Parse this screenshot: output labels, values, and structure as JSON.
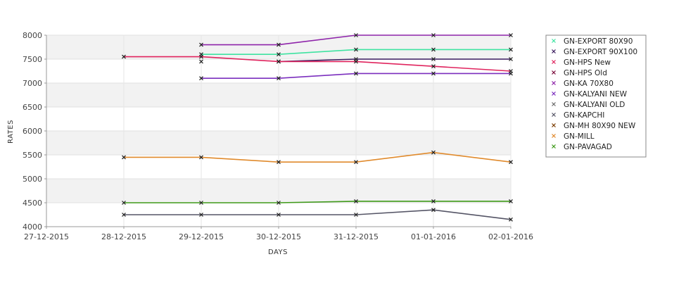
{
  "chart_data": {
    "type": "line",
    "xlabel": "DAYS",
    "ylabel": "RATES",
    "x": [
      "27-12-2015",
      "28-12-2015",
      "29-12-2015",
      "30-12-2015",
      "31-12-2015",
      "01-01-2016",
      "02-01-2016"
    ],
    "ylim": [
      4000,
      8000
    ],
    "yticks": [
      4000,
      4500,
      5000,
      5500,
      6000,
      6500,
      7000,
      7500,
      8000
    ],
    "grid": true,
    "legend_position": "right",
    "series": [
      {
        "name": "GN-EXPORT 80X90",
        "color": "#3fe3a1",
        "values": [
          null,
          null,
          7600,
          7600,
          7700,
          7700,
          7700
        ]
      },
      {
        "name": "GN-EXPORT 90X100",
        "color": "#3a1a5e",
        "values": [
          null,
          null,
          null,
          7450,
          7500,
          7500,
          7500
        ]
      },
      {
        "name": "GN-HPS New",
        "color": "#e0245e",
        "values": [
          null,
          7550,
          7550,
          7450,
          7450,
          7350,
          7250
        ]
      },
      {
        "name": "GN-HPS Old",
        "color": "#7a0a3a",
        "values": [
          null,
          null,
          null,
          null,
          null,
          null,
          null
        ]
      },
      {
        "name": "GN-KA 70X80",
        "color": "#8e24aa",
        "values": [
          null,
          null,
          7800,
          7800,
          8000,
          8000,
          8000
        ]
      },
      {
        "name": "GN-KALYANI NEW",
        "color": "#7b2fbe",
        "values": [
          null,
          null,
          7100,
          7100,
          7200,
          7200,
          7200
        ]
      },
      {
        "name": "GN-KALYANI OLD",
        "color": "#6b6b6b",
        "values": [
          null,
          null,
          7450,
          null,
          null,
          null,
          null
        ]
      },
      {
        "name": "GN-KAPCHI",
        "color": "#555566",
        "values": [
          null,
          4250,
          4250,
          4250,
          4250,
          4350,
          4150
        ]
      },
      {
        "name": "GN-MH 80X90 NEW",
        "color": "#7a3b00",
        "values": [
          null,
          null,
          null,
          null,
          null,
          null,
          null
        ]
      },
      {
        "name": "GN-MILL",
        "color": "#e08a2c",
        "values": [
          null,
          5450,
          5450,
          5350,
          5350,
          5550,
          5350
        ]
      },
      {
        "name": "GN-PAVAGAD",
        "color": "#3f9a1a",
        "values": [
          null,
          4500,
          4500,
          4500,
          4530,
          4530,
          4530
        ]
      }
    ]
  }
}
